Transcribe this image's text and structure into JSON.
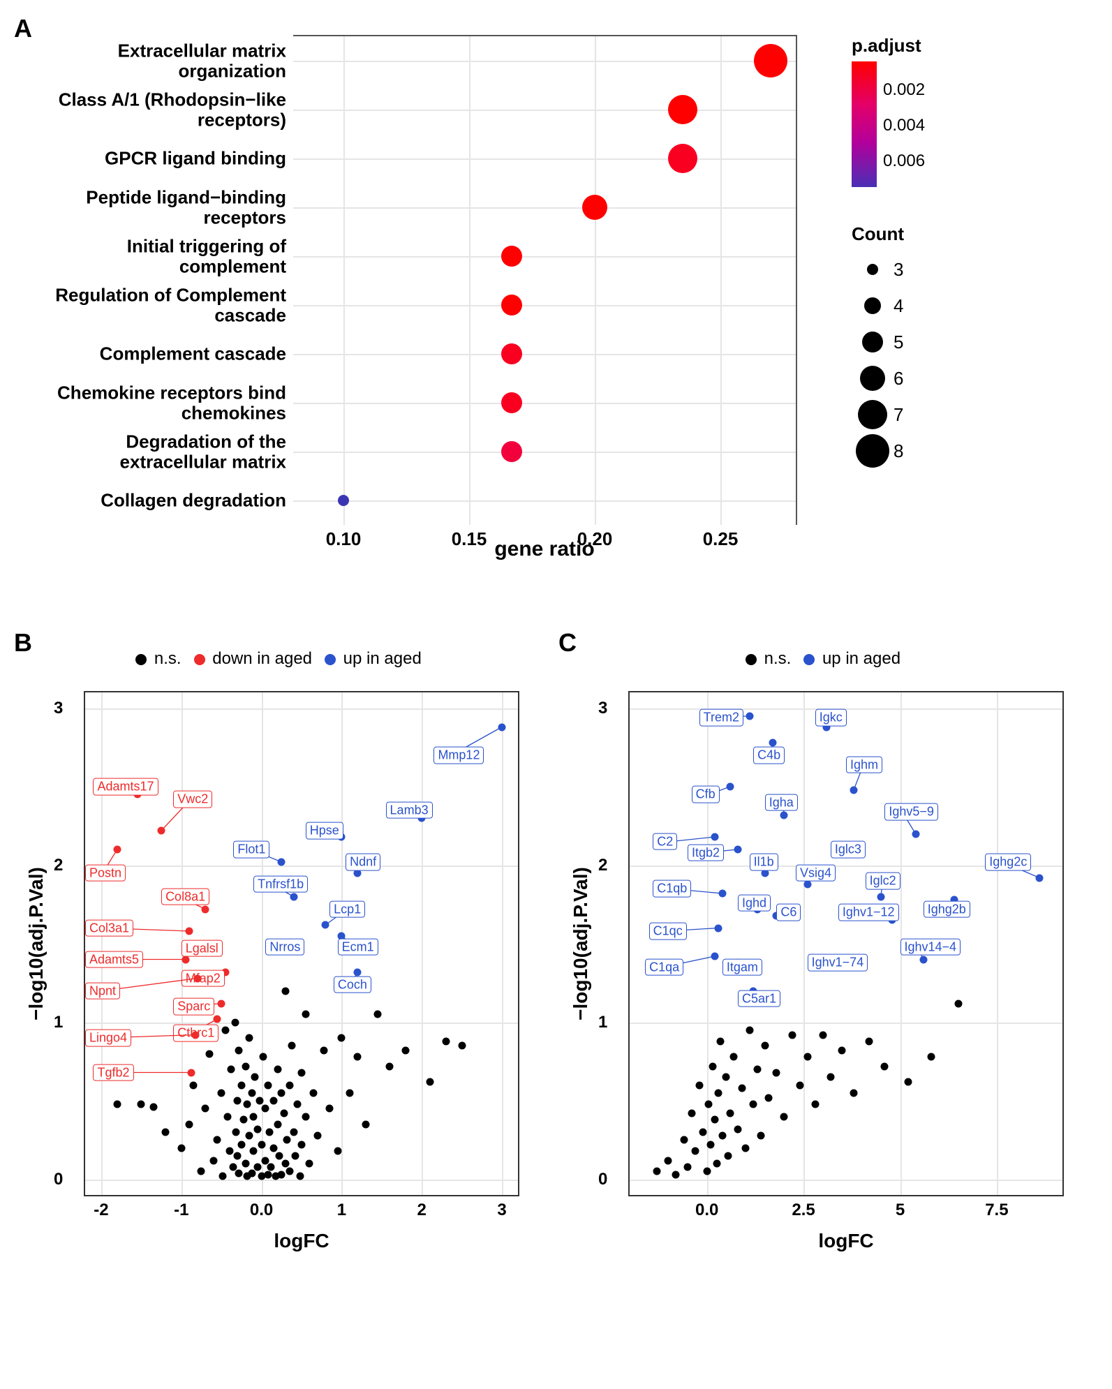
{
  "panelA": {
    "label": "A",
    "type": "dot-plot",
    "x_label": "gene ratio",
    "xlim": [
      0.08,
      0.28
    ],
    "xticks": [
      0.1,
      0.15,
      0.2,
      0.25
    ],
    "background_color": "#ffffff",
    "grid_color": "#e5e5e5",
    "label_fontsize": 26,
    "xlabel_fontsize": 30,
    "dot_border": "none",
    "rows": [
      {
        "label": "Extracellular matrix\norganization",
        "gene_ratio": 0.27,
        "count": 8,
        "padj": 0.0005,
        "color": "#ff0000"
      },
      {
        "label": "Class A/1 (Rhodopsin−like\nreceptors)",
        "gene_ratio": 0.235,
        "count": 7,
        "padj": 0.0005,
        "color": "#ff0000"
      },
      {
        "label": "GPCR ligand binding",
        "gene_ratio": 0.235,
        "count": 7,
        "padj": 0.001,
        "color": "#fa0020"
      },
      {
        "label": "Peptide ligand−binding\nreceptors",
        "gene_ratio": 0.2,
        "count": 6,
        "padj": 0.0005,
        "color": "#ff0000"
      },
      {
        "label": "Initial triggering of\ncomplement",
        "gene_ratio": 0.167,
        "count": 5,
        "padj": 0.0005,
        "color": "#ff0000"
      },
      {
        "label": "Regulation of Complement\ncascade",
        "gene_ratio": 0.167,
        "count": 5,
        "padj": 0.0005,
        "color": "#ff0000"
      },
      {
        "label": "Complement cascade",
        "gene_ratio": 0.167,
        "count": 5,
        "padj": 0.001,
        "color": "#fa0020"
      },
      {
        "label": "Chemokine receptors bind\nchemokines",
        "gene_ratio": 0.167,
        "count": 5,
        "padj": 0.001,
        "color": "#fa0020"
      },
      {
        "label": "Degradation of the\nextracellular matrix",
        "gene_ratio": 0.167,
        "count": 5,
        "padj": 0.0015,
        "color": "#f2003c"
      },
      {
        "label": "Collagen degradation",
        "gene_ratio": 0.1,
        "count": 3,
        "padj": 0.0075,
        "color": "#3a36b3"
      }
    ],
    "color_legend": {
      "title": "p.adjust",
      "gradient_stops": [
        "#ff0000",
        "#e3006a",
        "#b1009c",
        "#4a2fb5"
      ],
      "ticks": [
        {
          "value": 0.002,
          "label": "0.002"
        },
        {
          "value": 0.004,
          "label": "0.004"
        },
        {
          "value": 0.006,
          "label": "0.006"
        }
      ]
    },
    "size_legend": {
      "title": "Count",
      "items": [
        {
          "count": 3,
          "diameter": 16
        },
        {
          "count": 4,
          "diameter": 24
        },
        {
          "count": 5,
          "diameter": 30
        },
        {
          "count": 6,
          "diameter": 36
        },
        {
          "count": 7,
          "diameter": 42
        },
        {
          "count": 8,
          "diameter": 48
        }
      ]
    },
    "count_to_diameter": {
      "3": 16,
      "4": 24,
      "5": 30,
      "6": 36,
      "7": 42,
      "8": 48
    }
  },
  "panelB": {
    "label": "B",
    "type": "volcano",
    "x_label": "logFC",
    "y_label": "−log10(adj.P.Val)",
    "xlim": [
      -2.2,
      3.2
    ],
    "ylim": [
      -0.1,
      3.1
    ],
    "xticks": [
      -2,
      -1,
      0,
      1,
      2,
      3
    ],
    "yticks": [
      0,
      1,
      2,
      3
    ],
    "background_color": "#ffffff",
    "grid_color": "#e5e5e5",
    "point_radius": 5.5,
    "label_fontsize": 18,
    "colors": {
      "ns": "#000000",
      "down": "#ee2b2b",
      "up": "#2a52cc"
    },
    "legend": [
      {
        "label": "n.s.",
        "color": "#000000"
      },
      {
        "label": "down in aged",
        "color": "#ee2b2b"
      },
      {
        "label": "up in aged",
        "color": "#2a52cc"
      }
    ],
    "labeled_points_down": [
      {
        "gene": "Adamts17",
        "x": -1.55,
        "y": 2.45,
        "lx": -2.1,
        "ly": 2.5,
        "anchor": "left"
      },
      {
        "gene": "Vwc2",
        "x": -1.25,
        "y": 2.22,
        "lx": -1.1,
        "ly": 2.42,
        "anchor": "left"
      },
      {
        "gene": "Postn",
        "x": -1.8,
        "y": 2.1,
        "lx": -2.2,
        "ly": 1.95,
        "anchor": "left"
      },
      {
        "gene": "Col8a1",
        "x": -0.7,
        "y": 1.72,
        "lx": -1.25,
        "ly": 1.8,
        "anchor": "left"
      },
      {
        "gene": "Col3a1",
        "x": -0.9,
        "y": 1.58,
        "lx": -2.2,
        "ly": 1.6,
        "anchor": "left"
      },
      {
        "gene": "Lgalsl",
        "x": -0.55,
        "y": 1.5,
        "lx": -1.0,
        "ly": 1.47,
        "anchor": "left"
      },
      {
        "gene": "Adamts5",
        "x": -0.95,
        "y": 1.4,
        "lx": -2.2,
        "ly": 1.4,
        "anchor": "left"
      },
      {
        "gene": "Mfap2",
        "x": -0.45,
        "y": 1.32,
        "lx": -1.0,
        "ly": 1.28,
        "anchor": "left"
      },
      {
        "gene": "Npnt",
        "x": -0.8,
        "y": 1.28,
        "lx": -2.2,
        "ly": 1.2,
        "anchor": "left"
      },
      {
        "gene": "Sparc",
        "x": -0.5,
        "y": 1.12,
        "lx": -1.1,
        "ly": 1.1,
        "anchor": "left"
      },
      {
        "gene": "Cthrc1",
        "x": -0.55,
        "y": 1.02,
        "lx": -1.1,
        "ly": 0.93,
        "anchor": "left"
      },
      {
        "gene": "Lingo4",
        "x": -0.82,
        "y": 0.92,
        "lx": -2.2,
        "ly": 0.9,
        "anchor": "left"
      },
      {
        "gene": "Tgfb2",
        "x": -0.88,
        "y": 0.68,
        "lx": -2.1,
        "ly": 0.68,
        "anchor": "left"
      }
    ],
    "labeled_points_up": [
      {
        "gene": "Mmp12",
        "x": 3.0,
        "y": 2.88,
        "lx": 2.15,
        "ly": 2.7,
        "anchor": "left"
      },
      {
        "gene": "Lamb3",
        "x": 2.0,
        "y": 2.3,
        "lx": 1.55,
        "ly": 2.35,
        "anchor": "left"
      },
      {
        "gene": "Hpse",
        "x": 1.0,
        "y": 2.18,
        "lx": 0.55,
        "ly": 2.22,
        "anchor": "left"
      },
      {
        "gene": "Flot1",
        "x": 0.25,
        "y": 2.02,
        "lx": -0.35,
        "ly": 2.1,
        "anchor": "left"
      },
      {
        "gene": "Ndnf",
        "x": 1.2,
        "y": 1.95,
        "lx": 1.05,
        "ly": 2.02,
        "anchor": "left"
      },
      {
        "gene": "Tnfrsf1b",
        "x": 0.4,
        "y": 1.8,
        "lx": -0.1,
        "ly": 1.88,
        "anchor": "left"
      },
      {
        "gene": "Lcp1",
        "x": 0.8,
        "y": 1.62,
        "lx": 0.85,
        "ly": 1.72,
        "anchor": "left"
      },
      {
        "gene": "Nrros",
        "x": 0.45,
        "y": 1.48,
        "lx": 0.05,
        "ly": 1.48,
        "anchor": "left"
      },
      {
        "gene": "Ecm1",
        "x": 1.0,
        "y": 1.55,
        "lx": 0.95,
        "ly": 1.48,
        "anchor": "left"
      },
      {
        "gene": "Coch",
        "x": 1.2,
        "y": 1.32,
        "lx": 0.9,
        "ly": 1.24,
        "anchor": "left"
      }
    ],
    "ns_points": [
      [
        -1.8,
        0.48
      ],
      [
        -1.5,
        0.48
      ],
      [
        -1.35,
        0.46
      ],
      [
        -1.2,
        0.3
      ],
      [
        -1.0,
        0.2
      ],
      [
        -0.9,
        0.35
      ],
      [
        -0.85,
        0.6
      ],
      [
        -0.75,
        0.05
      ],
      [
        -0.7,
        0.45
      ],
      [
        -0.65,
        0.8
      ],
      [
        -0.6,
        0.12
      ],
      [
        -0.55,
        0.25
      ],
      [
        -0.5,
        0.55
      ],
      [
        -0.48,
        0.02
      ],
      [
        -0.45,
        0.95
      ],
      [
        -0.42,
        0.4
      ],
      [
        -0.4,
        0.18
      ],
      [
        -0.38,
        0.7
      ],
      [
        -0.35,
        0.08
      ],
      [
        -0.33,
        1.0
      ],
      [
        -0.32,
        0.3
      ],
      [
        -0.3,
        0.5
      ],
      [
        -0.3,
        0.15
      ],
      [
        -0.28,
        0.82
      ],
      [
        -0.28,
        0.04
      ],
      [
        -0.25,
        0.6
      ],
      [
        -0.25,
        0.22
      ],
      [
        -0.22,
        0.38
      ],
      [
        -0.2,
        0.1
      ],
      [
        -0.2,
        0.72
      ],
      [
        -0.18,
        0.02
      ],
      [
        -0.18,
        0.48
      ],
      [
        -0.15,
        0.28
      ],
      [
        -0.15,
        0.9
      ],
      [
        -0.12,
        0.04
      ],
      [
        -0.12,
        0.55
      ],
      [
        -0.1,
        0.18
      ],
      [
        -0.1,
        0.4
      ],
      [
        -0.08,
        0.65
      ],
      [
        -0.05,
        0.08
      ],
      [
        -0.05,
        0.32
      ],
      [
        -0.02,
        0.5
      ],
      [
        0.0,
        0.02
      ],
      [
        0.0,
        0.22
      ],
      [
        0.02,
        0.78
      ],
      [
        0.05,
        0.12
      ],
      [
        0.05,
        0.45
      ],
      [
        0.08,
        0.03
      ],
      [
        0.08,
        0.6
      ],
      [
        0.1,
        0.3
      ],
      [
        0.12,
        0.08
      ],
      [
        0.15,
        0.5
      ],
      [
        0.15,
        0.2
      ],
      [
        0.18,
        0.02
      ],
      [
        0.2,
        0.7
      ],
      [
        0.2,
        0.35
      ],
      [
        0.22,
        0.15
      ],
      [
        0.25,
        0.55
      ],
      [
        0.25,
        0.03
      ],
      [
        0.28,
        0.42
      ],
      [
        0.3,
        0.1
      ],
      [
        0.3,
        1.2
      ],
      [
        0.32,
        0.25
      ],
      [
        0.35,
        0.6
      ],
      [
        0.35,
        0.05
      ],
      [
        0.38,
        0.85
      ],
      [
        0.4,
        0.3
      ],
      [
        0.42,
        0.15
      ],
      [
        0.45,
        0.48
      ],
      [
        0.48,
        0.02
      ],
      [
        0.5,
        0.68
      ],
      [
        0.5,
        0.22
      ],
      [
        0.55,
        1.05
      ],
      [
        0.55,
        0.4
      ],
      [
        0.6,
        0.1
      ],
      [
        0.65,
        0.55
      ],
      [
        0.7,
        0.28
      ],
      [
        0.78,
        0.82
      ],
      [
        0.85,
        0.45
      ],
      [
        0.95,
        0.18
      ],
      [
        1.0,
        0.9
      ],
      [
        1.1,
        0.55
      ],
      [
        1.2,
        0.78
      ],
      [
        1.3,
        0.35
      ],
      [
        1.45,
        1.05
      ],
      [
        1.6,
        0.72
      ],
      [
        1.8,
        0.82
      ],
      [
        2.1,
        0.62
      ],
      [
        2.3,
        0.88
      ],
      [
        2.5,
        0.85
      ]
    ]
  },
  "panelC": {
    "label": "C",
    "type": "volcano",
    "x_label": "logFC",
    "y_label": "−log10(adj.P.Val)",
    "xlim": [
      -2.0,
      9.2
    ],
    "ylim": [
      -0.1,
      3.1
    ],
    "xticks": [
      0.0,
      2.5,
      5.0,
      7.5
    ],
    "yticks": [
      0,
      1,
      2,
      3
    ],
    "background_color": "#ffffff",
    "grid_color": "#e5e5e5",
    "point_radius": 5.5,
    "label_fontsize": 18,
    "colors": {
      "ns": "#000000",
      "up": "#2a52cc"
    },
    "legend": [
      {
        "label": "n.s.",
        "color": "#000000"
      },
      {
        "label": "up in aged",
        "color": "#2a52cc"
      }
    ],
    "labeled_points_up": [
      {
        "gene": "Trem2",
        "x": 1.1,
        "y": 2.95,
        "lx": -0.2,
        "ly": 2.94,
        "anchor": "left"
      },
      {
        "gene": "Igkc",
        "x": 3.1,
        "y": 2.88,
        "lx": 2.8,
        "ly": 2.94,
        "anchor": "left"
      },
      {
        "gene": "C4b",
        "x": 1.7,
        "y": 2.78,
        "lx": 1.2,
        "ly": 2.7,
        "anchor": "left"
      },
      {
        "gene": "Ighm",
        "x": 3.8,
        "y": 2.48,
        "lx": 3.6,
        "ly": 2.64,
        "anchor": "left"
      },
      {
        "gene": "Cfb",
        "x": 0.6,
        "y": 2.5,
        "lx": -0.4,
        "ly": 2.45,
        "anchor": "left"
      },
      {
        "gene": "Igha",
        "x": 2.0,
        "y": 2.32,
        "lx": 1.5,
        "ly": 2.4,
        "anchor": "left"
      },
      {
        "gene": "Ighv5−9",
        "x": 5.4,
        "y": 2.2,
        "lx": 4.6,
        "ly": 2.34,
        "anchor": "left"
      },
      {
        "gene": "C2",
        "x": 0.2,
        "y": 2.18,
        "lx": -1.4,
        "ly": 2.15,
        "anchor": "left"
      },
      {
        "gene": "Itgb2",
        "x": 0.8,
        "y": 2.1,
        "lx": -0.5,
        "ly": 2.08,
        "anchor": "left"
      },
      {
        "gene": "Iglc3",
        "x": 3.8,
        "y": 2.08,
        "lx": 3.2,
        "ly": 2.1,
        "anchor": "left"
      },
      {
        "gene": "Il1b",
        "x": 1.5,
        "y": 1.95,
        "lx": 1.1,
        "ly": 2.02,
        "anchor": "left"
      },
      {
        "gene": "Ighg2c",
        "x": 8.6,
        "y": 1.92,
        "lx": 7.2,
        "ly": 2.02,
        "anchor": "left"
      },
      {
        "gene": "Vsig4",
        "x": 2.6,
        "y": 1.88,
        "lx": 2.3,
        "ly": 1.95,
        "anchor": "left"
      },
      {
        "gene": "Iglc2",
        "x": 4.5,
        "y": 1.8,
        "lx": 4.1,
        "ly": 1.9,
        "anchor": "left"
      },
      {
        "gene": "C1qb",
        "x": 0.4,
        "y": 1.82,
        "lx": -1.4,
        "ly": 1.85,
        "anchor": "left"
      },
      {
        "gene": "Ighd",
        "x": 1.3,
        "y": 1.72,
        "lx": 0.8,
        "ly": 1.76,
        "anchor": "left"
      },
      {
        "gene": "C6",
        "x": 1.8,
        "y": 1.68,
        "lx": 1.8,
        "ly": 1.7,
        "anchor": "left"
      },
      {
        "gene": "Ighv1−12",
        "x": 4.8,
        "y": 1.65,
        "lx": 3.4,
        "ly": 1.7,
        "anchor": "left"
      },
      {
        "gene": "Ighg2b",
        "x": 6.4,
        "y": 1.78,
        "lx": 5.6,
        "ly": 1.72,
        "anchor": "left"
      },
      {
        "gene": "C1qc",
        "x": 0.3,
        "y": 1.6,
        "lx": -1.5,
        "ly": 1.58,
        "anchor": "left"
      },
      {
        "gene": "Ighv14−4",
        "x": 5.6,
        "y": 1.4,
        "lx": 5.0,
        "ly": 1.48,
        "anchor": "left"
      },
      {
        "gene": "C1qa",
        "x": 0.2,
        "y": 1.42,
        "lx": -1.6,
        "ly": 1.35,
        "anchor": "left"
      },
      {
        "gene": "Itgam",
        "x": 0.8,
        "y": 1.38,
        "lx": 0.4,
        "ly": 1.35,
        "anchor": "left"
      },
      {
        "gene": "Ighv1−74",
        "x": 3.2,
        "y": 1.35,
        "lx": 2.6,
        "ly": 1.38,
        "anchor": "left"
      },
      {
        "gene": "C5ar1",
        "x": 1.2,
        "y": 1.2,
        "lx": 0.8,
        "ly": 1.15,
        "anchor": "left"
      }
    ],
    "ns_points": [
      [
        -1.3,
        0.05
      ],
      [
        -1.0,
        0.12
      ],
      [
        -0.8,
        0.03
      ],
      [
        -0.6,
        0.25
      ],
      [
        -0.5,
        0.08
      ],
      [
        -0.4,
        0.42
      ],
      [
        -0.3,
        0.18
      ],
      [
        -0.2,
        0.6
      ],
      [
        -0.1,
        0.3
      ],
      [
        0.0,
        0.05
      ],
      [
        0.05,
        0.48
      ],
      [
        0.1,
        0.22
      ],
      [
        0.15,
        0.72
      ],
      [
        0.2,
        0.38
      ],
      [
        0.25,
        0.1
      ],
      [
        0.3,
        0.55
      ],
      [
        0.35,
        0.88
      ],
      [
        0.4,
        0.28
      ],
      [
        0.5,
        0.65
      ],
      [
        0.55,
        0.15
      ],
      [
        0.6,
        0.42
      ],
      [
        0.7,
        0.78
      ],
      [
        0.8,
        0.32
      ],
      [
        0.9,
        0.58
      ],
      [
        1.0,
        0.2
      ],
      [
        1.1,
        0.95
      ],
      [
        1.2,
        0.48
      ],
      [
        1.3,
        0.7
      ],
      [
        1.4,
        0.28
      ],
      [
        1.5,
        0.85
      ],
      [
        1.6,
        0.52
      ],
      [
        1.8,
        0.68
      ],
      [
        2.0,
        0.4
      ],
      [
        2.2,
        0.92
      ],
      [
        2.4,
        0.6
      ],
      [
        2.6,
        0.78
      ],
      [
        2.8,
        0.48
      ],
      [
        3.0,
        0.92
      ],
      [
        3.2,
        0.65
      ],
      [
        3.5,
        0.82
      ],
      [
        3.8,
        0.55
      ],
      [
        4.2,
        0.88
      ],
      [
        4.6,
        0.72
      ],
      [
        5.2,
        0.62
      ],
      [
        5.8,
        0.78
      ],
      [
        6.5,
        1.12
      ]
    ]
  }
}
